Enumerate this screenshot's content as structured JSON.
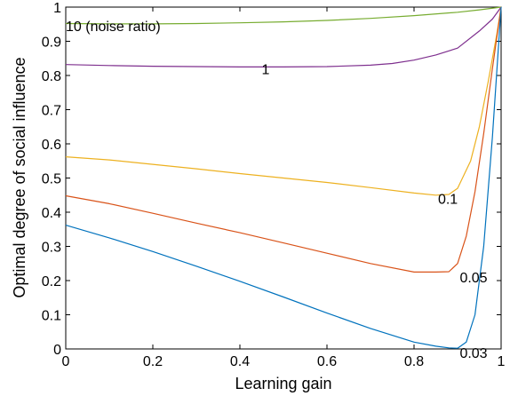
{
  "chart_data": {
    "type": "line",
    "xlabel": "Learning gain",
    "ylabel": "Optimal degree of social influence",
    "xlim": [
      0,
      1
    ],
    "ylim": [
      0,
      1
    ],
    "xticks": [
      "0",
      "0.2",
      "0.4",
      "0.6",
      "0.8",
      "1"
    ],
    "yticks": [
      "0",
      "0.1",
      "0.2",
      "0.3",
      "0.4",
      "0.5",
      "0.6",
      "0.7",
      "0.8",
      "0.9",
      "1"
    ],
    "grid": false,
    "series": [
      {
        "color": "#77ac30",
        "x": [
          0,
          0.1,
          0.2,
          0.3,
          0.4,
          0.5,
          0.6,
          0.7,
          0.8,
          0.9,
          0.95,
          1
        ],
        "y": [
          0.952,
          0.951,
          0.951,
          0.952,
          0.954,
          0.957,
          0.961,
          0.967,
          0.975,
          0.985,
          0.992,
          1.0
        ]
      },
      {
        "color": "#7e2f8e",
        "x": [
          0,
          0.1,
          0.2,
          0.3,
          0.4,
          0.5,
          0.6,
          0.7,
          0.75,
          0.8,
          0.85,
          0.9,
          0.95,
          0.98,
          1
        ],
        "y": [
          0.832,
          0.829,
          0.827,
          0.826,
          0.825,
          0.825,
          0.826,
          0.83,
          0.835,
          0.845,
          0.86,
          0.88,
          0.93,
          0.965,
          1.0
        ]
      },
      {
        "color": "#edb120",
        "x": [
          0,
          0.1,
          0.2,
          0.3,
          0.4,
          0.5,
          0.6,
          0.7,
          0.8,
          0.85,
          0.88,
          0.9,
          0.93,
          0.95,
          0.97,
          0.99,
          1
        ],
        "y": [
          0.562,
          0.553,
          0.54,
          0.527,
          0.513,
          0.5,
          0.487,
          0.472,
          0.456,
          0.45,
          0.452,
          0.47,
          0.55,
          0.65,
          0.78,
          0.92,
          1.0
        ]
      },
      {
        "color": "#d95319",
        "x": [
          0,
          0.1,
          0.2,
          0.3,
          0.4,
          0.5,
          0.6,
          0.7,
          0.8,
          0.85,
          0.88,
          0.9,
          0.92,
          0.94,
          0.96,
          0.98,
          1
        ],
        "y": [
          0.448,
          0.425,
          0.397,
          0.368,
          0.34,
          0.31,
          0.28,
          0.25,
          0.225,
          0.225,
          0.226,
          0.25,
          0.33,
          0.46,
          0.63,
          0.82,
          1.0
        ]
      },
      {
        "color": "#0072bd",
        "x": [
          0,
          0.1,
          0.2,
          0.3,
          0.4,
          0.5,
          0.6,
          0.7,
          0.8,
          0.85,
          0.88,
          0.9,
          0.92,
          0.94,
          0.96,
          0.98,
          1
        ],
        "y": [
          0.362,
          0.325,
          0.285,
          0.242,
          0.198,
          0.152,
          0.105,
          0.06,
          0.02,
          0.008,
          0.003,
          0.002,
          0.02,
          0.1,
          0.3,
          0.62,
          1.0
        ]
      }
    ],
    "annotations": [
      {
        "text": "10 (noise ratio)",
        "x": 0.0,
        "y": 0.945
      },
      {
        "text": "1",
        "x": 0.45,
        "y": 0.82
      },
      {
        "text": "0.1",
        "x": 0.855,
        "y": 0.44
      },
      {
        "text": "0.05",
        "x": 0.905,
        "y": 0.21
      },
      {
        "text": "0.03",
        "x": 0.905,
        "y": -0.01
      }
    ]
  }
}
